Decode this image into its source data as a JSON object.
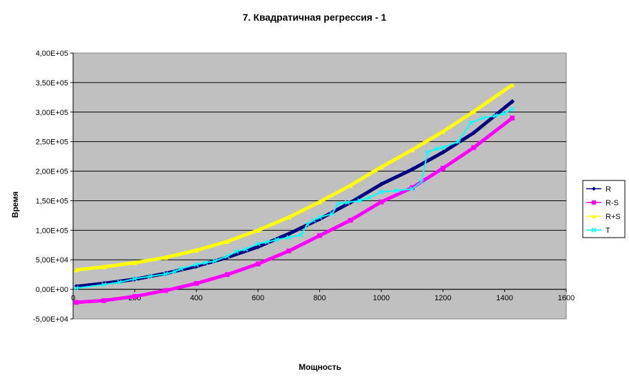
{
  "chart_data": {
    "type": "line",
    "title": "7. Квадратичная регрессия - 1",
    "xlabel": "Мощность",
    "ylabel": "Время",
    "xlim": [
      0,
      1600
    ],
    "ylim": [
      -50000,
      400000
    ],
    "x_ticks": [
      0,
      200,
      400,
      600,
      800,
      1000,
      1200,
      1400,
      1600
    ],
    "x_tick_labels": [
      "0",
      "200",
      "400",
      "600",
      "800",
      "1000",
      "1200",
      "1400",
      "1600"
    ],
    "y_ticks": [
      -50000,
      0,
      50000,
      100000,
      150000,
      200000,
      250000,
      300000,
      350000,
      400000
    ],
    "y_tick_labels": [
      "-5,00E+04",
      "0,00E+00",
      "5,00E+04",
      "1,00E+05",
      "1,50E+05",
      "2,00E+05",
      "2,50E+05",
      "3,00E+05",
      "3,50E+05",
      "4,00E+05"
    ],
    "grid": "horizontal",
    "background": "#c0c0c0",
    "legend_position": "right",
    "series": [
      {
        "name": "R",
        "color": "#000080",
        "marker": "diamond",
        "x": [
          10,
          100,
          200,
          300,
          400,
          500,
          600,
          700,
          800,
          900,
          1000,
          1100,
          1200,
          1300,
          1425
        ],
        "y": [
          5000,
          10000,
          17000,
          27000,
          39000,
          54000,
          72000,
          94000,
          119000,
          147000,
          178000,
          203000,
          232000,
          265000,
          318000
        ]
      },
      {
        "name": "R-S",
        "color": "#ff00ff",
        "marker": "square",
        "x": [
          10,
          100,
          200,
          300,
          400,
          500,
          600,
          700,
          800,
          900,
          1000,
          1100,
          1200,
          1300,
          1425
        ],
        "y": [
          -22000,
          -19000,
          -12000,
          -2000,
          10000,
          25000,
          43000,
          65000,
          91000,
          117000,
          148000,
          172000,
          205000,
          240000,
          290000
        ]
      },
      {
        "name": "R+S",
        "color": "#ffff00",
        "marker": "triangle",
        "x": [
          10,
          100,
          200,
          300,
          400,
          500,
          600,
          700,
          800,
          900,
          1000,
          1100,
          1200,
          1300,
          1425
        ],
        "y": [
          33000,
          38000,
          45000,
          54000,
          66000,
          81000,
          100000,
          122000,
          148000,
          176000,
          207000,
          236000,
          267000,
          301000,
          346000
        ]
      },
      {
        "name": "T",
        "color": "#00ffff",
        "marker": "x",
        "x": [
          10,
          100,
          150,
          200,
          250,
          300,
          330,
          350,
          400,
          430,
          460,
          500,
          530,
          560,
          600,
          630,
          660,
          700,
          740,
          760,
          780,
          800,
          840,
          860,
          890,
          930,
          960,
          1000,
          1050,
          1100,
          1130,
          1150,
          1180,
          1200,
          1250,
          1290,
          1330,
          1370,
          1400,
          1425
        ],
        "y": [
          2000,
          8000,
          12000,
          18000,
          22000,
          26000,
          30000,
          35000,
          42000,
          45000,
          48000,
          56000,
          64000,
          68000,
          77000,
          80000,
          84000,
          88000,
          92000,
          110000,
          117000,
          122000,
          128000,
          145000,
          147000,
          150000,
          155000,
          165000,
          167000,
          170000,
          182000,
          232000,
          238000,
          240000,
          250000,
          282000,
          290000,
          294000,
          298000,
          305000
        ]
      }
    ]
  }
}
